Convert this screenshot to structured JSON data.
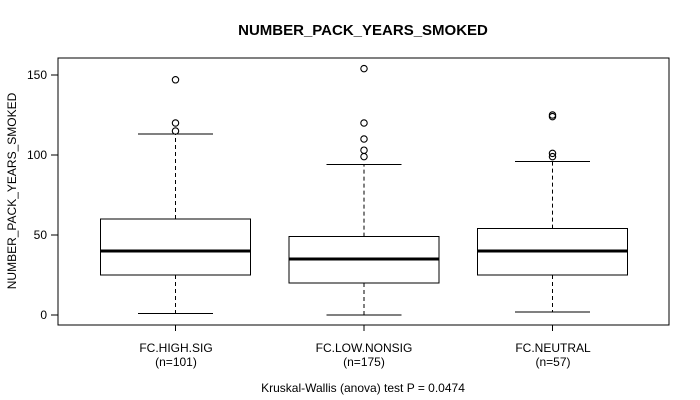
{
  "title": "NUMBER_PACK_YEARS_SMOKED",
  "caption": "Kruskal-Wallis (anova) test P = 0.0474",
  "colors": {
    "line": "#000000",
    "background": "#ffffff",
    "text": "#000000"
  },
  "chart_data": {
    "type": "boxplot",
    "title": "NUMBER_PACK_YEARS_SMOKED",
    "ylabel": "NUMBER_PACK_YEARS_SMOKED",
    "xlabel": "",
    "yticks": [
      0,
      50,
      100,
      150
    ],
    "ylim": [
      -8,
      162
    ],
    "grid": false,
    "legend": "none",
    "caption": "Kruskal-Wallis (anova) test P = 0.0474",
    "groups": [
      {
        "label": "FC.HIGH.SIG",
        "n_label": "(n=101)",
        "n": 101,
        "whisker_low": 1,
        "q1": 25,
        "median": 40,
        "q3": 60,
        "whisker_high": 113,
        "outliers": [
          115,
          120,
          147
        ]
      },
      {
        "label": "FC.LOW.NONSIG",
        "n_label": "(n=175)",
        "n": 175,
        "whisker_low": 0,
        "q1": 20,
        "median": 35,
        "q3": 49,
        "whisker_high": 94,
        "outliers": [
          99,
          103,
          110,
          120,
          154
        ]
      },
      {
        "label": "FC.NEUTRAL",
        "n_label": "(n=57)",
        "n": 57,
        "whisker_low": 2,
        "q1": 25,
        "median": 40,
        "q3": 54,
        "whisker_high": 96,
        "outliers": [
          99,
          101,
          124,
          125
        ]
      }
    ]
  }
}
